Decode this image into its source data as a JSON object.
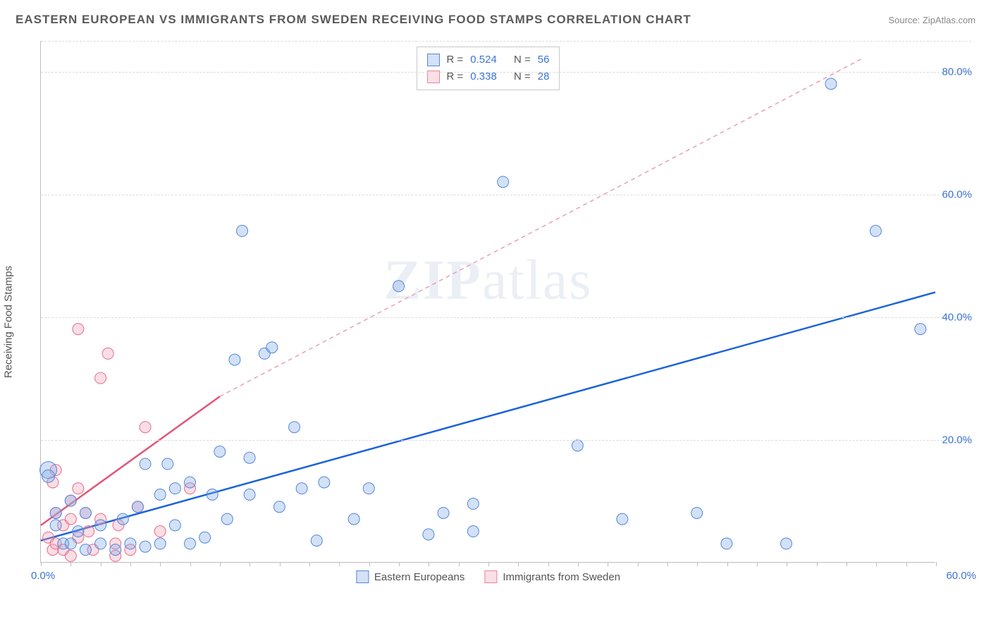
{
  "title": "EASTERN EUROPEAN VS IMMIGRANTS FROM SWEDEN RECEIVING FOOD STAMPS CORRELATION CHART",
  "source": "Source: ZipAtlas.com",
  "ylabel": "Receiving Food Stamps",
  "watermark": {
    "bold": "ZIP",
    "rest": "atlas"
  },
  "chart": {
    "type": "scatter",
    "xlim": [
      0,
      60
    ],
    "ylim": [
      0,
      85
    ],
    "x_ticks_minor_step": 2,
    "x_tick_min_label": "0.0%",
    "x_tick_max_label": "60.0%",
    "y_ticks": [
      {
        "v": 20,
        "label": "20.0%"
      },
      {
        "v": 40,
        "label": "40.0%"
      },
      {
        "v": 60,
        "label": "60.0%"
      },
      {
        "v": 80,
        "label": "80.0%"
      }
    ],
    "grid_color": "#dcdcdc",
    "axis_color": "#bcbcbc",
    "background_color": "#ffffff",
    "tick_label_color": "#3b74d1",
    "series": [
      {
        "name": "Eastern Europeans",
        "color": "#5287dc",
        "fill": "rgba(130,170,230,0.35)",
        "stroke": "#5287dc",
        "marker_r": 8,
        "R": "0.524",
        "N": "56",
        "trend": {
          "x1": 0,
          "y1": 3.5,
          "x2": 60,
          "y2": 44,
          "stroke": "#1b64d8",
          "width": 2.5,
          "dash": "none"
        },
        "points": [
          {
            "x": 0.5,
            "y": 15,
            "r": 12
          },
          {
            "x": 0.5,
            "y": 14,
            "r": 9
          },
          {
            "x": 1,
            "y": 8
          },
          {
            "x": 1,
            "y": 6
          },
          {
            "x": 1.5,
            "y": 3
          },
          {
            "x": 2,
            "y": 10
          },
          {
            "x": 2,
            "y": 3
          },
          {
            "x": 2.5,
            "y": 5
          },
          {
            "x": 3,
            "y": 2
          },
          {
            "x": 3,
            "y": 8
          },
          {
            "x": 4,
            "y": 3
          },
          {
            "x": 4,
            "y": 6
          },
          {
            "x": 5,
            "y": 2
          },
          {
            "x": 5.5,
            "y": 7
          },
          {
            "x": 6,
            "y": 3
          },
          {
            "x": 6.5,
            "y": 9
          },
          {
            "x": 7,
            "y": 2.5
          },
          {
            "x": 7,
            "y": 16
          },
          {
            "x": 8,
            "y": 3
          },
          {
            "x": 8,
            "y": 11
          },
          {
            "x": 8.5,
            "y": 16
          },
          {
            "x": 9,
            "y": 6
          },
          {
            "x": 9,
            "y": 12
          },
          {
            "x": 10,
            "y": 13
          },
          {
            "x": 10,
            "y": 3
          },
          {
            "x": 11,
            "y": 4
          },
          {
            "x": 11.5,
            "y": 11
          },
          {
            "x": 12,
            "y": 18
          },
          {
            "x": 12.5,
            "y": 7
          },
          {
            "x": 13,
            "y": 33
          },
          {
            "x": 13.5,
            "y": 54
          },
          {
            "x": 14,
            "y": 11
          },
          {
            "x": 14,
            "y": 17
          },
          {
            "x": 15,
            "y": 34
          },
          {
            "x": 15.5,
            "y": 35
          },
          {
            "x": 16,
            "y": 9
          },
          {
            "x": 17,
            "y": 22
          },
          {
            "x": 17.5,
            "y": 12
          },
          {
            "x": 18.5,
            "y": 3.5
          },
          {
            "x": 19,
            "y": 13
          },
          {
            "x": 21,
            "y": 7
          },
          {
            "x": 22,
            "y": 12
          },
          {
            "x": 24,
            "y": 45
          },
          {
            "x": 26,
            "y": 4.5
          },
          {
            "x": 27,
            "y": 8
          },
          {
            "x": 29,
            "y": 5
          },
          {
            "x": 29,
            "y": 9.5
          },
          {
            "x": 31,
            "y": 62
          },
          {
            "x": 36,
            "y": 19
          },
          {
            "x": 39,
            "y": 7
          },
          {
            "x": 44,
            "y": 8
          },
          {
            "x": 46,
            "y": 3
          },
          {
            "x": 50,
            "y": 3
          },
          {
            "x": 53,
            "y": 78
          },
          {
            "x": 56,
            "y": 54
          },
          {
            "x": 59,
            "y": 38
          }
        ]
      },
      {
        "name": "Immigrants from Sweden",
        "color": "#eb829b",
        "fill": "rgba(240,160,180,0.35)",
        "stroke": "#e86a8a",
        "marker_r": 8,
        "R": "0.338",
        "N": "28",
        "trend_solid": {
          "x1": 0,
          "y1": 6,
          "x2": 12,
          "y2": 27,
          "stroke": "#e25578",
          "width": 2.5
        },
        "trend_dash": {
          "x1": 12,
          "y1": 27,
          "x2": 55,
          "y2": 82,
          "stroke": "#e8a0b2",
          "width": 1.5,
          "dash": "6,5"
        },
        "points": [
          {
            "x": 0.5,
            "y": 4
          },
          {
            "x": 0.8,
            "y": 2
          },
          {
            "x": 0.8,
            "y": 13
          },
          {
            "x": 1,
            "y": 15
          },
          {
            "x": 1,
            "y": 8
          },
          {
            "x": 1,
            "y": 3
          },
          {
            "x": 1.5,
            "y": 6
          },
          {
            "x": 1.5,
            "y": 2
          },
          {
            "x": 2,
            "y": 1
          },
          {
            "x": 2,
            "y": 7
          },
          {
            "x": 2,
            "y": 10
          },
          {
            "x": 2.5,
            "y": 4
          },
          {
            "x": 2.5,
            "y": 12
          },
          {
            "x": 2.5,
            "y": 38
          },
          {
            "x": 3,
            "y": 8
          },
          {
            "x": 3.2,
            "y": 5
          },
          {
            "x": 3.5,
            "y": 2
          },
          {
            "x": 4,
            "y": 7
          },
          {
            "x": 4,
            "y": 30
          },
          {
            "x": 4.5,
            "y": 34
          },
          {
            "x": 5,
            "y": 3
          },
          {
            "x": 5,
            "y": 1
          },
          {
            "x": 5.2,
            "y": 6
          },
          {
            "x": 6,
            "y": 2
          },
          {
            "x": 6.5,
            "y": 9
          },
          {
            "x": 7,
            "y": 22
          },
          {
            "x": 8,
            "y": 5
          },
          {
            "x": 10,
            "y": 12
          }
        ]
      }
    ],
    "stats_box": {
      "rows": [
        {
          "swatch": "blue",
          "r_label": "R =",
          "r_val": "0.524",
          "n_label": "N =",
          "n_val": "56"
        },
        {
          "swatch": "pink",
          "r_label": "R =",
          "r_val": "0.338",
          "n_label": "N =",
          "n_val": "28"
        }
      ]
    },
    "legend": [
      {
        "swatch": "blue",
        "label": "Eastern Europeans"
      },
      {
        "swatch": "pink",
        "label": "Immigrants from Sweden"
      }
    ]
  }
}
